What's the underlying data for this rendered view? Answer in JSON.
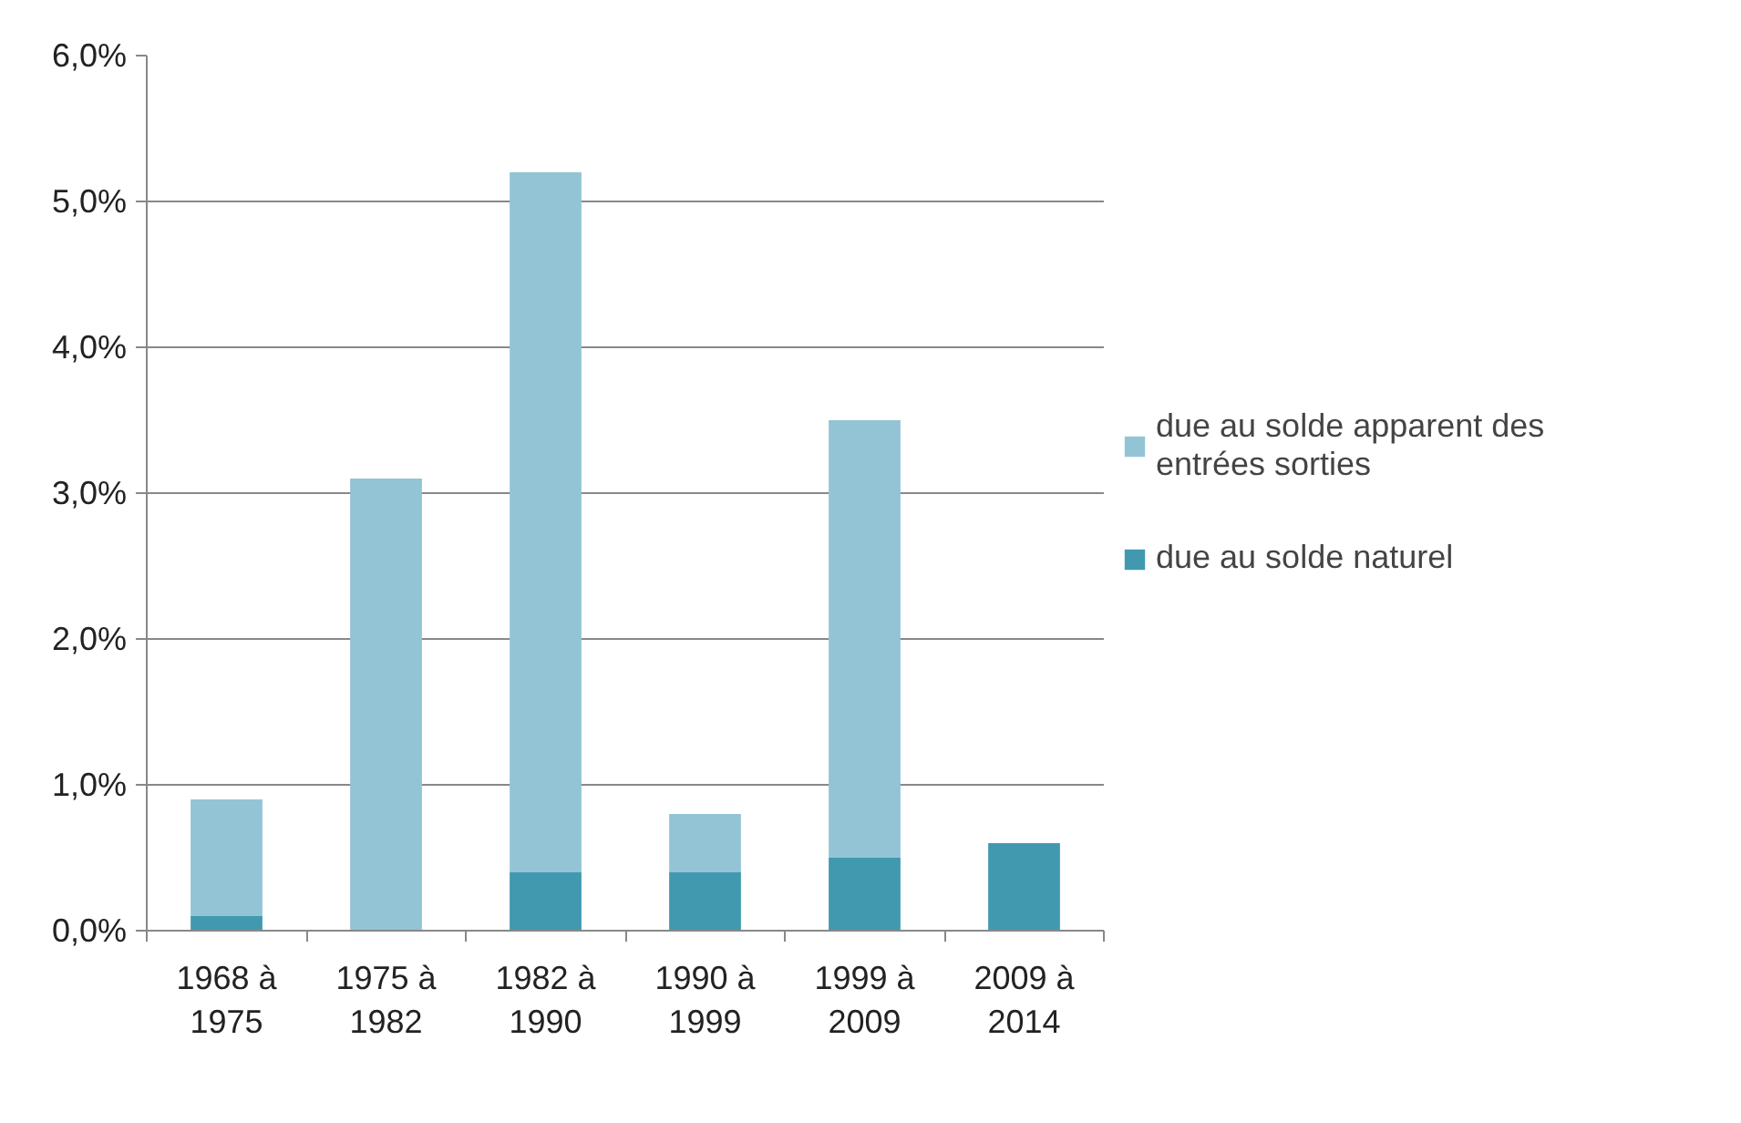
{
  "chart_data": {
    "type": "bar",
    "stacked": true,
    "categories": [
      "1968 à 1975",
      "1975 à 1982",
      "1982 à 1990",
      "1990 à 1999",
      "1999 à 2009",
      "2009 à 2014"
    ],
    "series": [
      {
        "name": "due au solde naturel",
        "color": "#4199b0",
        "values": [
          0.1,
          0,
          0.4,
          0.4,
          0.5,
          0.6
        ]
      },
      {
        "name": "due au solde apparent des entrées sorties",
        "color": "#93c4d5",
        "values": [
          0.8,
          3.1,
          4.8,
          0.4,
          3.0,
          0
        ]
      }
    ],
    "ylim": [
      0,
      6
    ],
    "yticks": [
      {
        "value": 0,
        "label": "0,0%"
      },
      {
        "value": 1,
        "label": "1,0%"
      },
      {
        "value": 2,
        "label": "2,0%"
      },
      {
        "value": 3,
        "label": "3,0%"
      },
      {
        "value": 4,
        "label": "4,0%"
      },
      {
        "value": 5,
        "label": "5,0%"
      },
      {
        "value": 6,
        "label": "6,0%"
      }
    ],
    "grid": "y",
    "legend": "right"
  }
}
